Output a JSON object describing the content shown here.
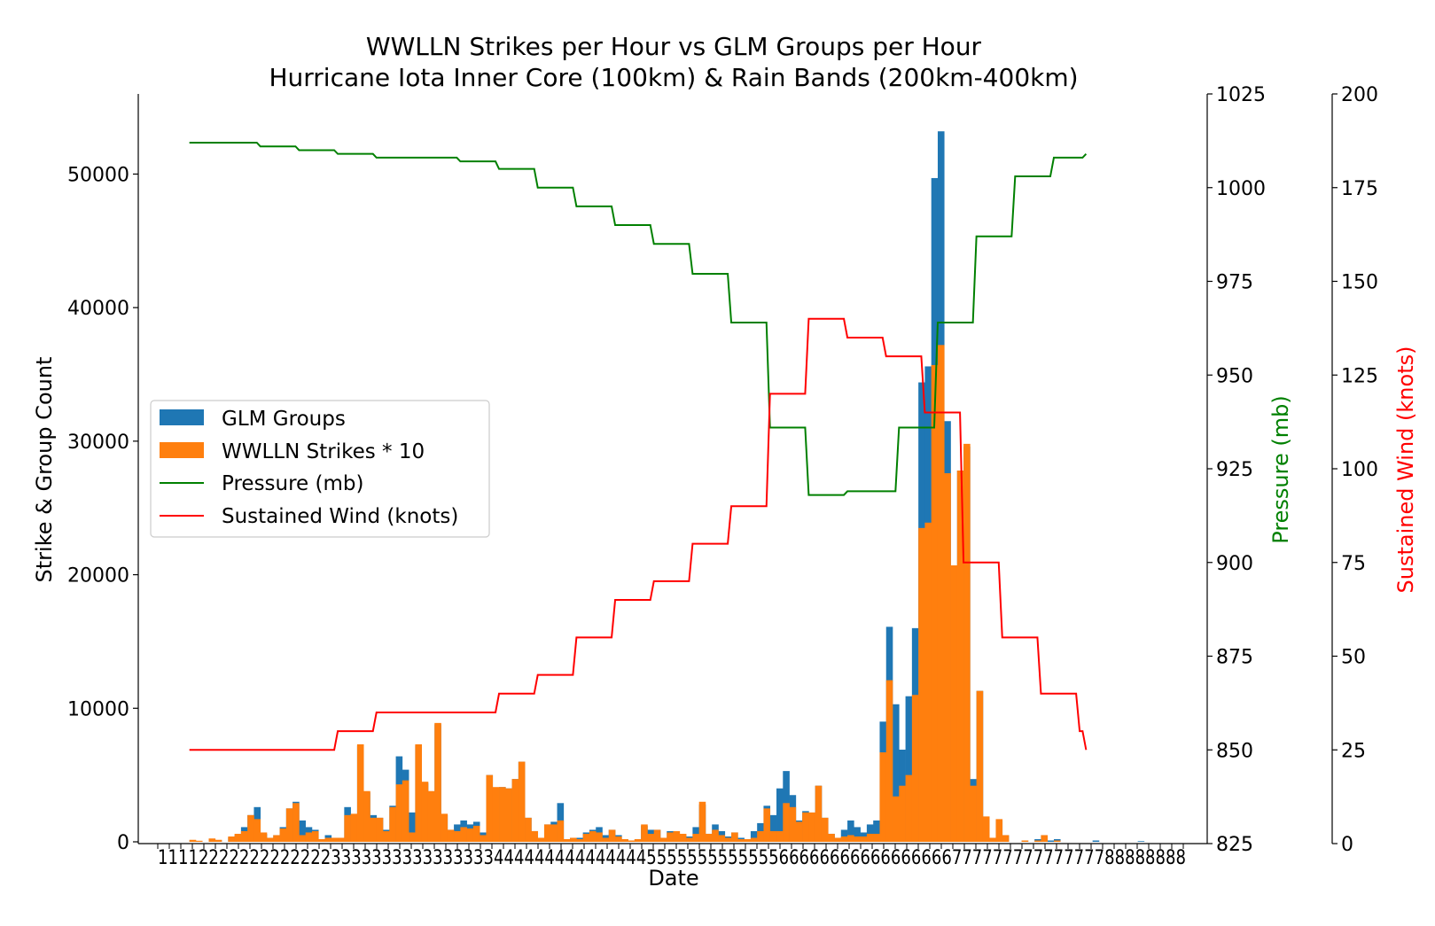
{
  "chart_data": {
    "type": "bar",
    "title": "WWLLN Strikes per Hour vs GLM Groups per Hour",
    "subtitle": "Hurricane Iota Inner Core (100km) & Rain Bands (200km-400km)",
    "xlabel": "Date",
    "ylabel": "Strike & Group Count",
    "ylabel_pressure": "Pressure (mb)",
    "ylabel_wind": "Sustained Wind (knots)",
    "ylim": [
      0,
      56000
    ],
    "pressure_ylim": [
      825,
      1025
    ],
    "wind_ylim": [
      0,
      200
    ],
    "y_ticks": [
      0,
      10000,
      20000,
      30000,
      40000,
      50000
    ],
    "pressure_ticks": [
      825,
      850,
      875,
      900,
      925,
      950,
      975,
      1000,
      1025
    ],
    "wind_ticks": [
      0,
      25,
      50,
      75,
      100,
      125,
      150,
      175,
      200
    ],
    "x_tick_text": "11​112222222222222333333333333333344444444444444455555555555556666666666666666677777777777777788888888",
    "x_count": 158,
    "legend": {
      "placement": "center-left",
      "entries": [
        "GLM Groups",
        "WWLLN Strikes * 10",
        "Pressure (mb)",
        "Sustained Wind (knots)"
      ]
    },
    "colors": {
      "glm": "#1f77b4",
      "wwlln": "#ff7f0e",
      "pressure": "#008000",
      "wind": "#ff0000"
    },
    "series": [
      {
        "name": "GLM Groups",
        "values": [
          0,
          0,
          0,
          0,
          0,
          0,
          100,
          50,
          0,
          200,
          100,
          0,
          300,
          500,
          1100,
          2000,
          2600,
          600,
          300,
          500,
          1100,
          2500,
          3000,
          1600,
          1100,
          900,
          200,
          500,
          300,
          300,
          2600,
          2000,
          7200,
          3700,
          2000,
          1800,
          900,
          2700,
          6400,
          5400,
          2200,
          7200,
          4400,
          3700,
          8800,
          2000,
          900,
          1300,
          1600,
          1300,
          1500,
          700,
          5000,
          4000,
          4100,
          4000,
          4700,
          6000,
          1800,
          800,
          300,
          1300,
          1500,
          2900,
          200,
          300,
          300,
          700,
          900,
          1100,
          500,
          900,
          500,
          200,
          100,
          200,
          1200,
          900,
          900,
          300,
          800,
          600,
          500,
          400,
          1100,
          2800,
          600,
          1300,
          800,
          400,
          700,
          300,
          200,
          800,
          1400,
          2700,
          2000,
          4000,
          5300,
          3500,
          1600,
          2300,
          2000,
          4200,
          1800,
          600,
          300,
          900,
          1600,
          1100,
          700,
          1300,
          1600,
          9000,
          16100,
          10300,
          6900,
          10900,
          16000,
          34400,
          35600,
          49700,
          53200,
          31500,
          20600,
          27800,
          29600,
          4700,
          11300,
          1800,
          300,
          1600,
          500,
          0,
          0,
          100,
          0,
          200,
          500,
          100,
          200,
          0,
          0,
          0,
          0,
          0,
          100,
          0,
          0,
          0,
          0,
          0,
          0,
          50,
          0,
          0
        ],
        "base": "stacked-behind"
      },
      {
        "name": "WWLLN Strikes * 10",
        "values": [
          0,
          0,
          0,
          0,
          0,
          0,
          150,
          80,
          0,
          250,
          150,
          0,
          400,
          600,
          800,
          2000,
          1700,
          700,
          300,
          500,
          1000,
          2500,
          2900,
          500,
          700,
          800,
          200,
          300,
          300,
          300,
          2000,
          2100,
          7300,
          3800,
          1800,
          1800,
          800,
          2600,
          4300,
          4600,
          700,
          7300,
          4500,
          3800,
          8900,
          2100,
          900,
          800,
          1100,
          1000,
          1200,
          500,
          5000,
          4100,
          4100,
          4000,
          4700,
          6000,
          1800,
          800,
          300,
          1300,
          1300,
          1600,
          200,
          300,
          200,
          600,
          800,
          700,
          300,
          900,
          400,
          200,
          100,
          200,
          1300,
          600,
          900,
          300,
          700,
          800,
          600,
          300,
          600,
          3000,
          600,
          900,
          500,
          300,
          700,
          200,
          200,
          300,
          800,
          2500,
          800,
          800,
          2900,
          2600,
          1500,
          2200,
          2200,
          4200,
          1800,
          600,
          300,
          400,
          500,
          400,
          400,
          600,
          600,
          6700,
          12100,
          3400,
          4200,
          5000,
          11000,
          23500,
          23900,
          35700,
          37200,
          27600,
          20700,
          27800,
          29800,
          4200,
          11300,
          1900,
          300,
          1700,
          500,
          0,
          0,
          100,
          0,
          100,
          500,
          0,
          100,
          0,
          0,
          0,
          0,
          0,
          0,
          0,
          0,
          0,
          0,
          0,
          0,
          0,
          0,
          0
        ]
      },
      {
        "name": "Pressure (mb)",
        "steps": [
          [
            6,
            1012
          ],
          [
            17,
            1011
          ],
          [
            23,
            1010
          ],
          [
            29,
            1009
          ],
          [
            35,
            1008
          ],
          [
            48,
            1007
          ],
          [
            54,
            1005
          ],
          [
            60,
            1000
          ],
          [
            66,
            995
          ],
          [
            72,
            990
          ],
          [
            78,
            985
          ],
          [
            84,
            977
          ],
          [
            90,
            964
          ],
          [
            96,
            936
          ],
          [
            102,
            918
          ],
          [
            108,
            919
          ],
          [
            116,
            936
          ],
          [
            122,
            964
          ],
          [
            128,
            987
          ],
          [
            134,
            1003
          ],
          [
            140,
            1008
          ],
          [
            145,
            1009
          ]
        ]
      },
      {
        "name": "Sustained Wind (knots)",
        "steps": [
          [
            6,
            25
          ],
          [
            29,
            30
          ],
          [
            35,
            35
          ],
          [
            54,
            40
          ],
          [
            60,
            45
          ],
          [
            66,
            55
          ],
          [
            72,
            65
          ],
          [
            78,
            70
          ],
          [
            84,
            80
          ],
          [
            90,
            90
          ],
          [
            96,
            120
          ],
          [
            102,
            140
          ],
          [
            108,
            135
          ],
          [
            114,
            130
          ],
          [
            120,
            115
          ],
          [
            126,
            75
          ],
          [
            132,
            55
          ],
          [
            138,
            40
          ],
          [
            144,
            30
          ],
          [
            145,
            25
          ]
        ]
      }
    ]
  }
}
